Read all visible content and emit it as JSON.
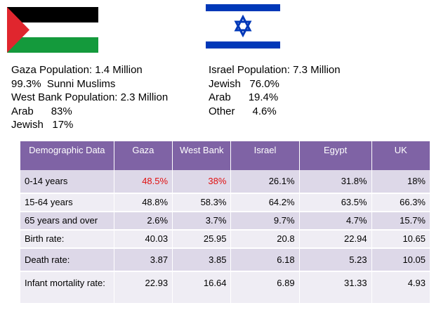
{
  "gaza_text": [
    "Gaza Population: 1.4 Million",
    "99.3%  Sunni Muslims",
    "West Bank Population: 2.3 Million",
    "Arab      83%",
    "Jewish   17%"
  ],
  "israel_text": [
    "Israel Population: 7.3 Million",
    "Jewish   76.0%",
    "Arab      19.4%",
    "Other      4.6%"
  ],
  "table": {
    "headers": [
      "Demographic Data",
      "Gaza",
      "West Bank",
      "Israel",
      "Egypt",
      "UK"
    ],
    "rows": [
      [
        "0-14 years",
        "48.5%",
        "38%",
        "26.1%",
        "31.8%",
        "18%"
      ],
      [
        "15-64 years",
        "48.8%",
        "58.3%",
        "64.2%",
        "63.5%",
        "66.3%"
      ],
      [
        "65 years and over",
        "2.6%",
        "3.7%",
        "9.7%",
        "4.7%",
        "15.7%"
      ],
      [
        "Birth rate:",
        "40.03",
        "25.95",
        "20.8",
        "22.94",
        "10.65"
      ],
      [
        "Death rate:",
        "3.87",
        "3.85",
        "6.18",
        "5.23",
        "10.05"
      ],
      [
        "Infant mortality rate:",
        "22.93",
        "16.64",
        "6.89",
        "31.33",
        "4.93"
      ]
    ]
  },
  "colors": {
    "header_bg": "#7f63a5",
    "row_even": "#ddd8e8",
    "row_odd": "#efedf4",
    "highlight": "#e01010",
    "palestine_black": "#000000",
    "palestine_green": "#149a3c",
    "palestine_red": "#e0262e",
    "israel_blue": "#0038b8"
  }
}
